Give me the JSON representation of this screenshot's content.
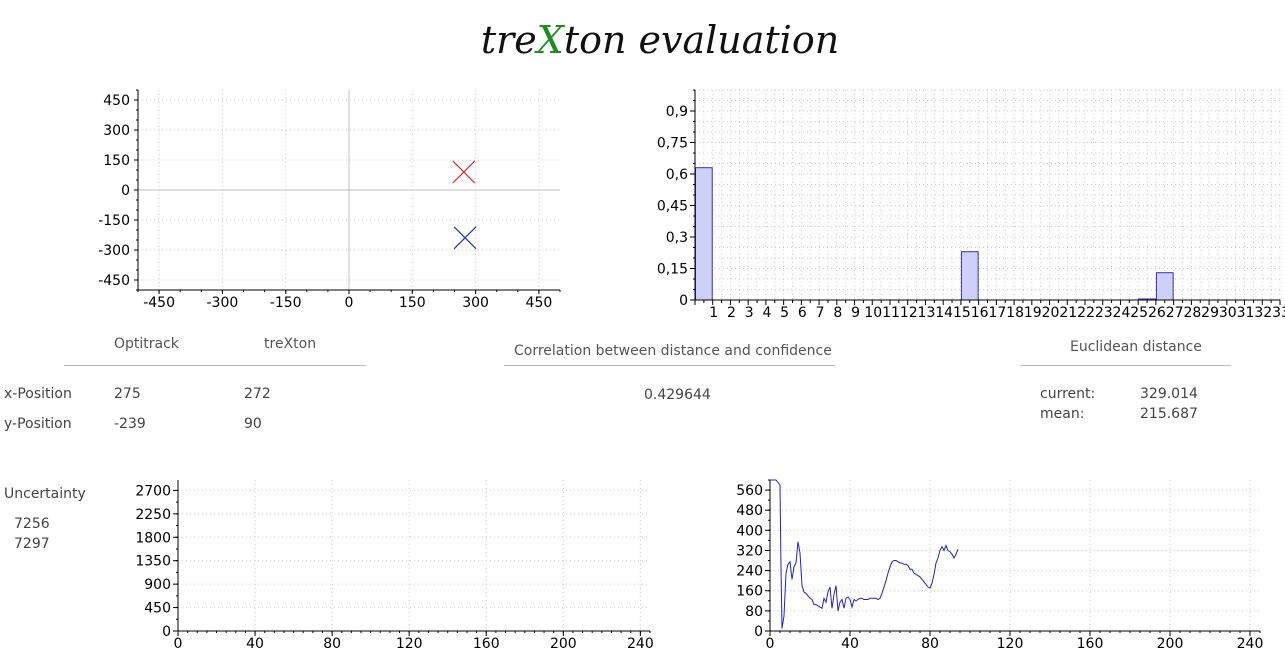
{
  "title": {
    "prefix": "tre",
    "accent": "X",
    "suffix": "ton evaluation",
    "accent_color": "#1e8c1e"
  },
  "position_table": {
    "col_optitrack": "Optitrack",
    "col_trexton": "treXton",
    "rows": [
      {
        "label": "x-Position",
        "optitrack": "275",
        "trexton": "272"
      },
      {
        "label": "y-Position",
        "optitrack": "-239",
        "trexton": "90"
      }
    ]
  },
  "correlation": {
    "header": "Correlation between distance and confidence",
    "value": "0.429644"
  },
  "euclidean": {
    "header": "Euclidean distance",
    "current_label": "current:",
    "current_value": "329.014",
    "mean_label": "mean:",
    "mean_value": "215.687"
  },
  "uncertainty": {
    "label": "Uncertainty",
    "value1": "7256",
    "value2": "7297"
  },
  "chart_data": [
    {
      "type": "scatter",
      "xlim": [
        -500,
        500
      ],
      "ylim": [
        -500,
        500
      ],
      "xticks": [
        -450,
        -300,
        -150,
        0,
        150,
        300,
        450
      ],
      "yticks": [
        450,
        300,
        150,
        0,
        -150,
        -300,
        -450
      ],
      "grid": true,
      "series": [
        {
          "marker": "x",
          "color": "#dd2222",
          "points": [
            [
              272,
              90
            ]
          ]
        },
        {
          "marker": "x",
          "color": "#2233cc",
          "points": [
            [
              275,
              -239
            ]
          ]
        }
      ]
    },
    {
      "type": "bar",
      "categories": [
        "1",
        "2",
        "3",
        "4",
        "5",
        "6",
        "7",
        "8",
        "9",
        "10",
        "11",
        "12",
        "13",
        "14",
        "15",
        "16",
        "17",
        "18",
        "19",
        "20",
        "21",
        "22",
        "23",
        "24",
        "25",
        "26",
        "27",
        "28",
        "29",
        "30",
        "31",
        "32",
        "33"
      ],
      "values": [
        0.63,
        0,
        0,
        0,
        0,
        0,
        0,
        0,
        0,
        0,
        0,
        0,
        0,
        0,
        0,
        0.23,
        0,
        0,
        0,
        0,
        0,
        0,
        0,
        0,
        0,
        0.005,
        0.13,
        0,
        0,
        0,
        0,
        0,
        0
      ],
      "ylim": [
        0,
        1
      ],
      "yticks": [
        "0",
        "0,15",
        "0,3",
        "0,45",
        "0,6",
        "0,75",
        "0,9"
      ],
      "color": "#cfd0f7",
      "stroke": "#3333bb",
      "grid": true
    },
    {
      "type": "line",
      "xlim": [
        0,
        245
      ],
      "ylim": [
        0,
        2900
      ],
      "xticks": [
        0,
        40,
        80,
        120,
        160,
        200,
        240
      ],
      "yticks": [
        0,
        450,
        900,
        1350,
        1800,
        2250,
        2700
      ],
      "series": [],
      "grid": true
    },
    {
      "type": "line",
      "xlim": [
        0,
        245
      ],
      "ylim": [
        0,
        600
      ],
      "xticks": [
        0,
        40,
        80,
        120,
        160,
        200,
        240
      ],
      "yticks": [
        0,
        80,
        160,
        240,
        320,
        400,
        480,
        560
      ],
      "grid": true,
      "series": [
        {
          "color": "#2222cc",
          "x": [
            0,
            1,
            2,
            3,
            4,
            5,
            5.5,
            6,
            7,
            8,
            9,
            10,
            11,
            12,
            13,
            14,
            15,
            16,
            17,
            18,
            19,
            20,
            21,
            22,
            23,
            24,
            25,
            26,
            27,
            28,
            29,
            30,
            31,
            32,
            33,
            34,
            35,
            36,
            37,
            38,
            39,
            40,
            41,
            42,
            43,
            44,
            45,
            46,
            47,
            48,
            49,
            50,
            51,
            52,
            53,
            54,
            55,
            56,
            57,
            58,
            59,
            60,
            61,
            62,
            63,
            64,
            65,
            66,
            67,
            68,
            69,
            70,
            71,
            72,
            73,
            74,
            75,
            76,
            77,
            78,
            79,
            80,
            81,
            82,
            83,
            84,
            85,
            86,
            87,
            88,
            89,
            90,
            91,
            92,
            93,
            94
          ],
          "y": [
            600,
            600,
            600,
            600,
            590,
            580,
            250,
            10,
            60,
            230,
            265,
            275,
            205,
            255,
            270,
            355,
            310,
            180,
            155,
            150,
            140,
            130,
            125,
            105,
            105,
            100,
            95,
            90,
            130,
            115,
            155,
            175,
            90,
            145,
            180,
            80,
            115,
            125,
            90,
            130,
            135,
            125,
            95,
            125,
            120,
            125,
            130,
            130,
            125,
            125,
            125,
            130,
            130,
            130,
            130,
            125,
            130,
            150,
            175,
            200,
            230,
            255,
            275,
            280,
            280,
            275,
            270,
            270,
            265,
            265,
            260,
            245,
            245,
            230,
            225,
            220,
            215,
            205,
            195,
            185,
            175,
            170,
            190,
            225,
            270,
            290,
            320,
            335,
            320,
            340,
            320,
            315,
            305,
            290,
            305,
            325
          ]
        }
      ]
    }
  ]
}
